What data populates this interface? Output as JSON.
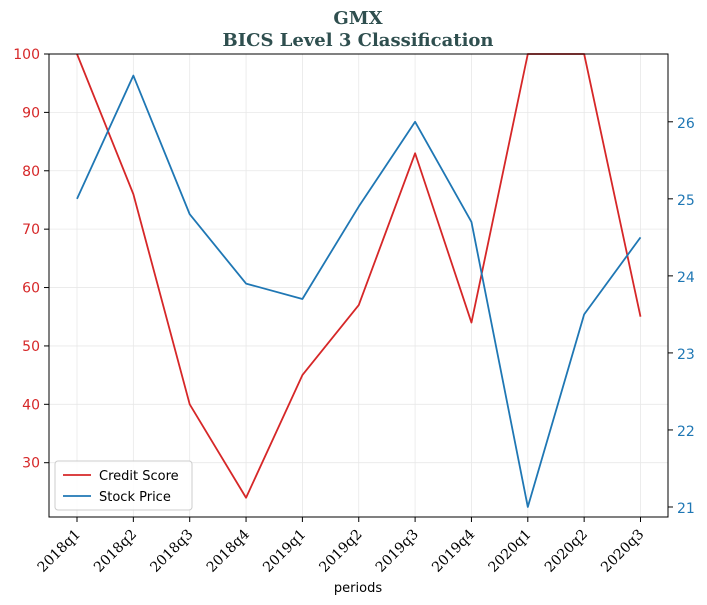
{
  "chart_data": {
    "type": "line",
    "title": "GMX",
    "subtitle": "BICS Level 3 Classification",
    "xlabel": "periods",
    "categories": [
      "2018q1",
      "2018q2",
      "2018q3",
      "2018q4",
      "2019q1",
      "2019q2",
      "2019q3",
      "2019q4",
      "2020q1",
      "2020q2",
      "2020q3"
    ],
    "left_axis": {
      "ylim": [
        20.7,
        100
      ],
      "ticks": [
        30,
        40,
        50,
        60,
        70,
        80,
        90,
        100
      ],
      "color": "#d62728"
    },
    "right_axis": {
      "ylim": [
        20.87,
        26.88
      ],
      "ticks": [
        21,
        22,
        23,
        24,
        25,
        26
      ],
      "color": "#1f77b4"
    },
    "series": [
      {
        "name": "Credit Score",
        "axis": "left",
        "color": "#d62728",
        "values": [
          100,
          76,
          40,
          24,
          45,
          57,
          83,
          54,
          100,
          100,
          55
        ]
      },
      {
        "name": "Stock Price",
        "axis": "right",
        "color": "#1f77b4",
        "values": [
          25.0,
          26.6,
          24.8,
          23.9,
          23.7,
          24.9,
          26.0,
          24.7,
          21.0,
          23.5,
          24.5
        ]
      }
    ],
    "grid": true,
    "legend_position": "lower-left"
  }
}
